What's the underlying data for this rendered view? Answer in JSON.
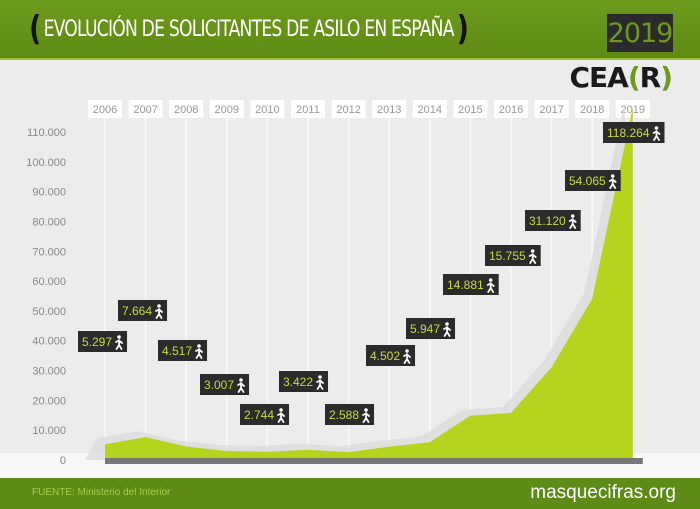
{
  "header": {
    "title": "EVOLUCIÓN DE SOLICITANTES DE ASILO EN ESPAÑA",
    "year": "2019",
    "logo": "CEA(R)"
  },
  "footer": {
    "source": "FUENTE: Ministerio del Interior",
    "site": "masquecifras.org"
  },
  "colors": {
    "header_green": "#6e9a1c",
    "area_green": "#b4d41e",
    "label_bg": "#2b2b2b",
    "label_text": "#c8dc3c"
  },
  "chart_data": {
    "type": "area",
    "categories": [
      "2006",
      "2007",
      "2008",
      "2009",
      "2010",
      "2011",
      "2012",
      "2013",
      "2014",
      "2015",
      "2016",
      "2017",
      "2018",
      "2019"
    ],
    "values": [
      5297,
      7664,
      4517,
      3007,
      2744,
      3422,
      2588,
      4502,
      5947,
      14881,
      15755,
      31120,
      54065,
      118264
    ],
    "data_labels": [
      "5.297",
      "7.664",
      "4.517",
      "3.007",
      "2.744",
      "3.422",
      "2.588",
      "4.502",
      "5.947",
      "14.881",
      "15.755",
      "31.120",
      "54.065",
      "118.264"
    ],
    "label_icon": "walking-person-icon",
    "y_ticks": [
      "0",
      "10.000",
      "20.000",
      "30.000",
      "40.000",
      "50.000",
      "60.000",
      "70.000",
      "80.000",
      "90.000",
      "100.000",
      "110.000"
    ],
    "ylim": [
      0,
      110000
    ],
    "grid": "vertical"
  }
}
